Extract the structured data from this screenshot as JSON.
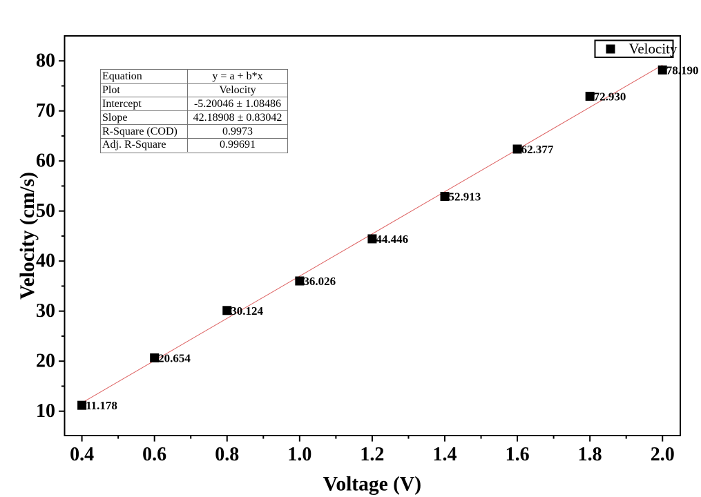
{
  "chart_data": {
    "type": "scatter",
    "title": "",
    "xlabel": "Voltage (V)",
    "ylabel": "Velocity (cm/s)",
    "x": [
      0.4,
      0.6,
      0.8,
      1.0,
      1.2,
      1.4,
      1.6,
      1.8,
      2.0
    ],
    "series": [
      {
        "name": "Velocity",
        "values": [
          11.178,
          20.654,
          30.124,
          36.026,
          44.446,
          52.913,
          62.377,
          72.93,
          78.19
        ]
      }
    ],
    "point_labels": [
      "11.178",
      "20.654",
      "30.124",
      "36.026",
      "44.446",
      "52.913",
      "62.377",
      "72.930",
      "78.190"
    ],
    "xlim": [
      0.35,
      2.05
    ],
    "ylim": [
      5,
      85
    ],
    "x_ticks": {
      "major": [
        0.4,
        0.6,
        0.8,
        1.0,
        1.2,
        1.4,
        1.6,
        1.8,
        2.0
      ],
      "labels": [
        "0.4",
        "0.6",
        "0.8",
        "1.0",
        "1.2",
        "1.4",
        "1.6",
        "1.8",
        "2.0"
      ],
      "minor": [
        0.5,
        0.7,
        0.9,
        1.1,
        1.3,
        1.5,
        1.7,
        1.9
      ]
    },
    "y_ticks": {
      "major": [
        10,
        20,
        30,
        40,
        50,
        60,
        70,
        80
      ],
      "labels": [
        "10",
        "20",
        "30",
        "40",
        "50",
        "60",
        "70",
        "80"
      ],
      "minor": [
        15,
        25,
        35,
        45,
        55,
        65,
        75
      ]
    },
    "fit_line": {
      "slope": 42.18908,
      "intercept": -5.20046,
      "x_start": 0.4,
      "x_end": 2.0,
      "color": "#dd6060"
    },
    "legend": {
      "label": "Velocity",
      "position": "top-right"
    },
    "grid": false,
    "marker": {
      "shape": "square",
      "size": 13,
      "color": "#000000"
    },
    "colors": {
      "text": "#000000",
      "frame": "#000000",
      "background": "#ffffff"
    }
  },
  "stats_table": {
    "rows": [
      {
        "label": "Equation",
        "value": "y = a + b*x"
      },
      {
        "label": "Plot",
        "value": "Velocity"
      },
      {
        "label": "Intercept",
        "value": "-5.20046 ± 1.08486"
      },
      {
        "label": "Slope",
        "value": "42.18908 ± 0.83042"
      },
      {
        "label": "R-Square (COD)",
        "value": "0.9973"
      },
      {
        "label": "Adj. R-Square",
        "value": "0.99691"
      }
    ]
  }
}
